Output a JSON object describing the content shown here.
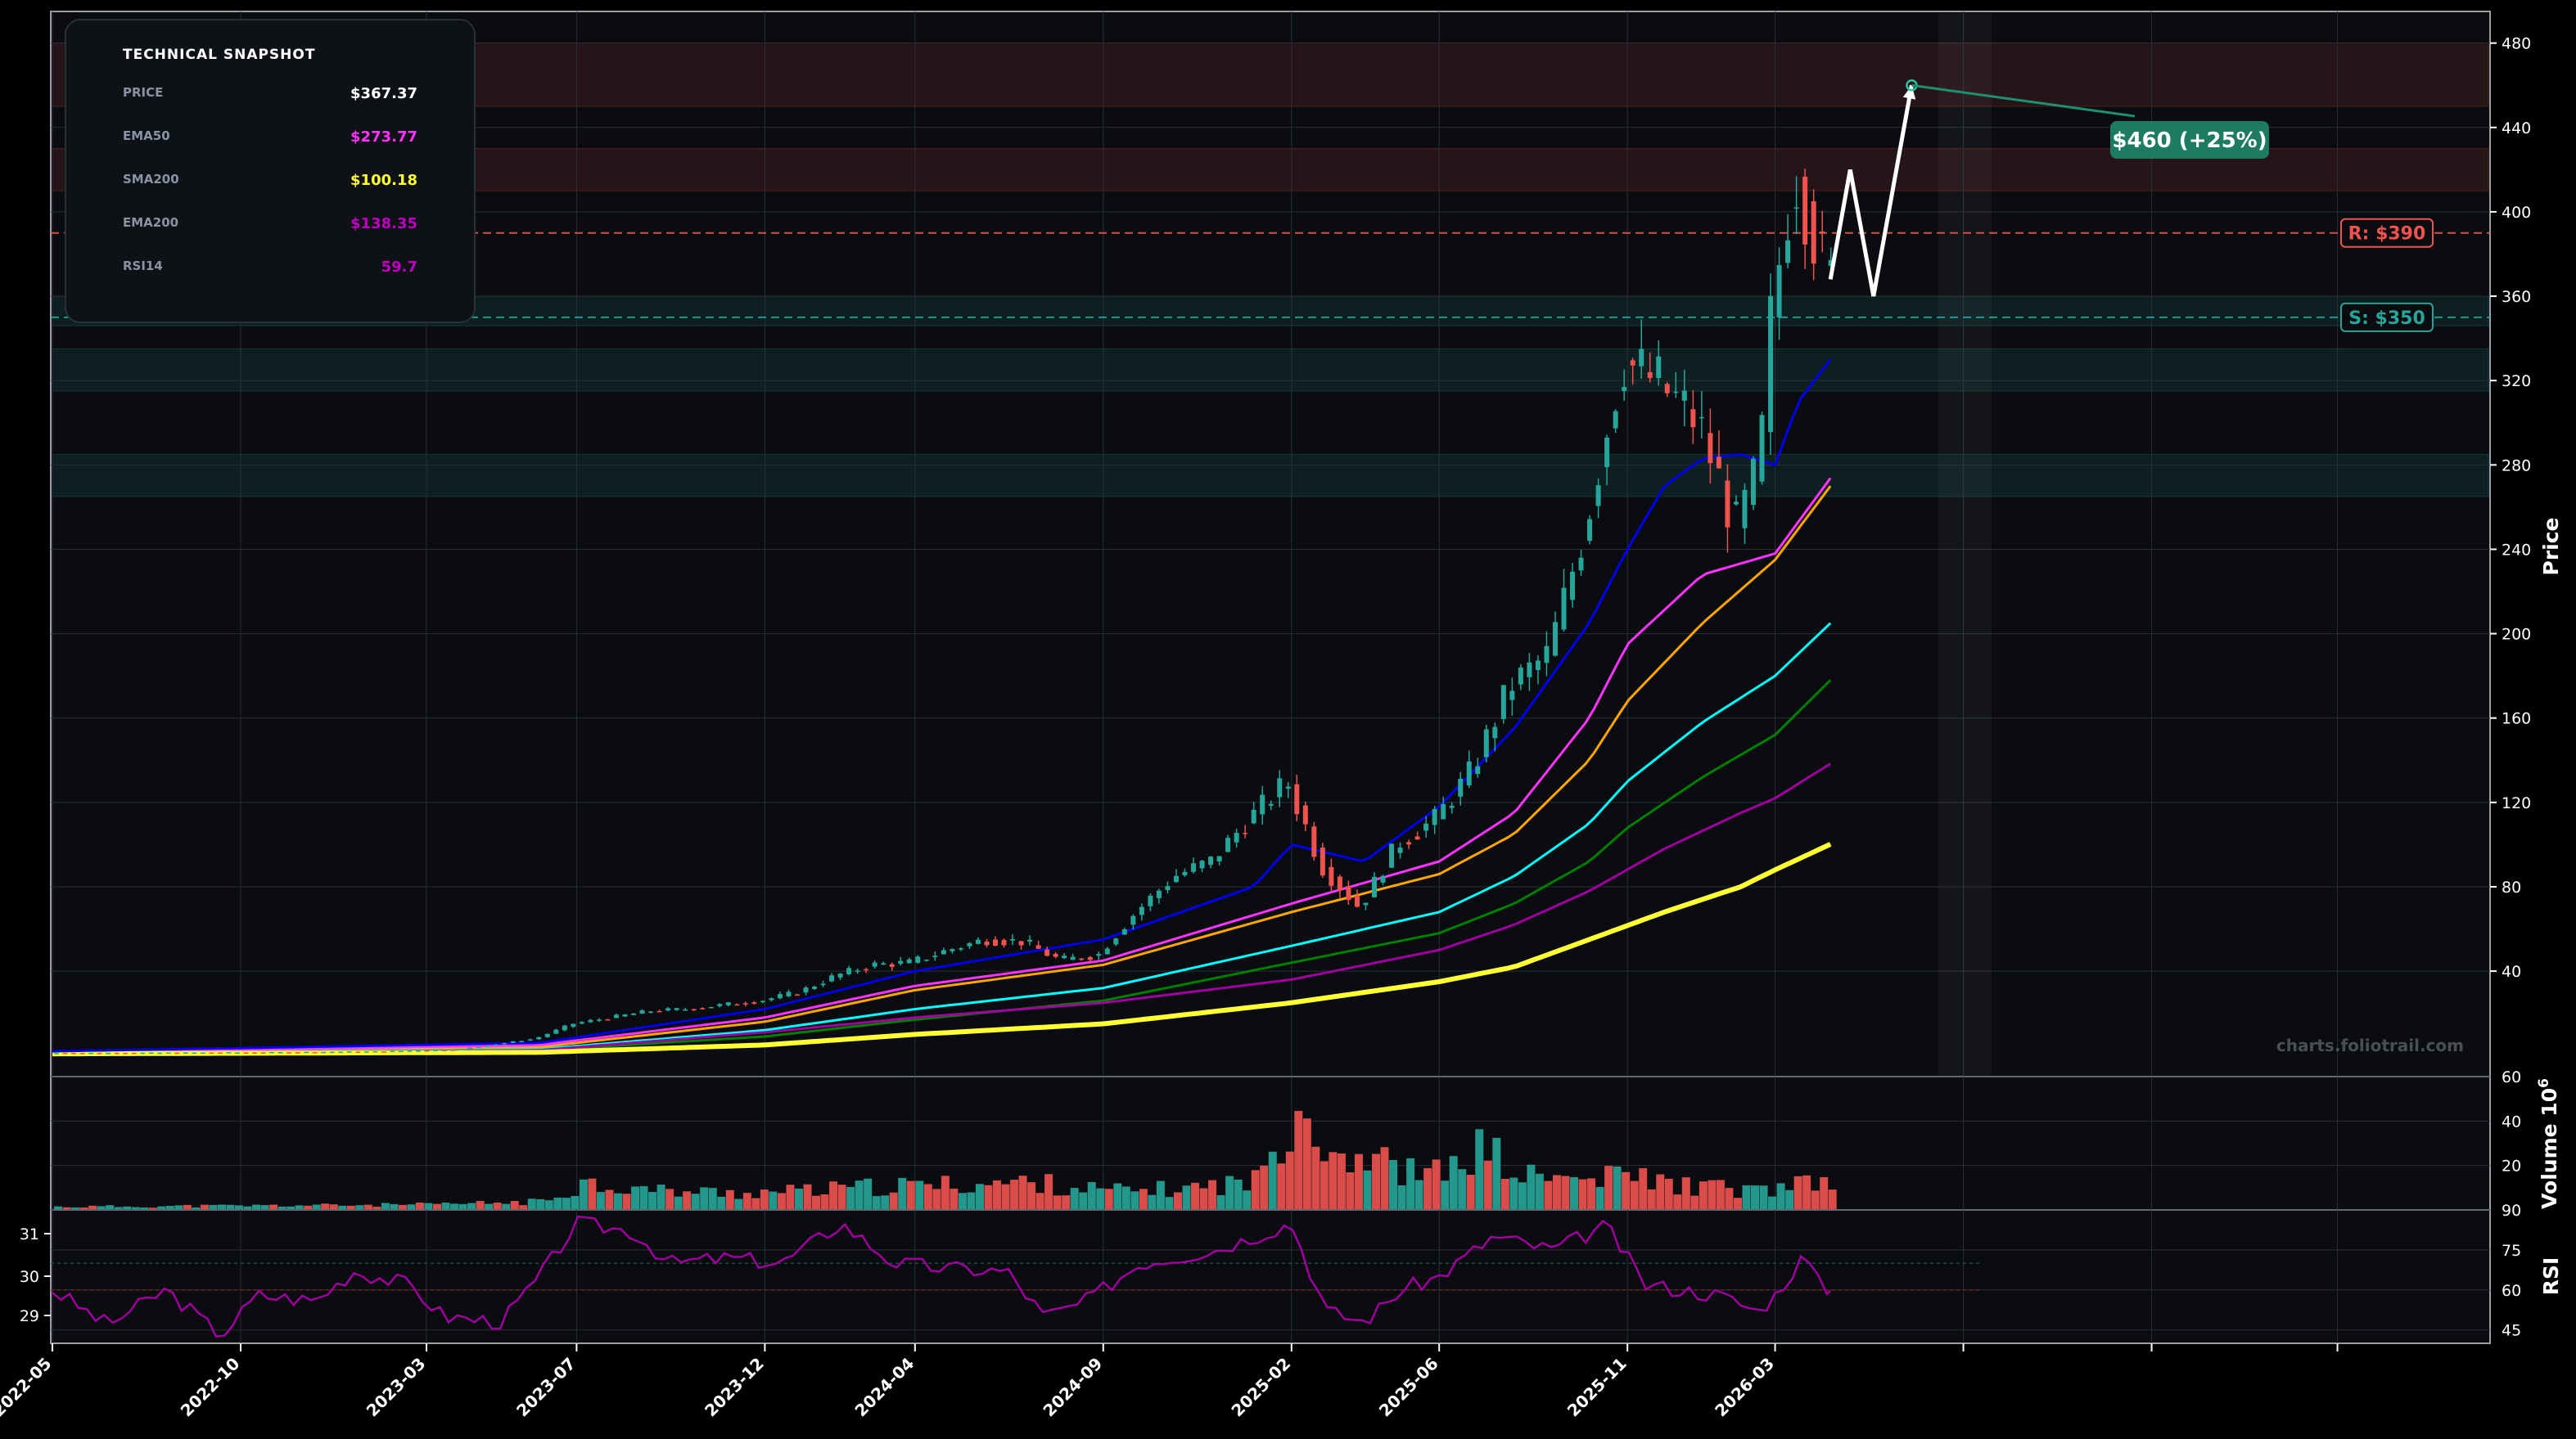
{
  "chart_data": [
    {
      "type": "candlestick",
      "panel": "price",
      "ylabel": "Price",
      "ylim": [
        -10,
        495
      ],
      "yticks": [
        40,
        80,
        120,
        160,
        200,
        240,
        280,
        320,
        360,
        400,
        440,
        480
      ],
      "x_axis": {
        "type": "date",
        "range": [
          "2022-05-01",
          "2027-06-01"
        ],
        "ticks": [
          "2022-05",
          "2022-10",
          "2023-03",
          "2023-07",
          "2023-12",
          "2024-04",
          "2024-09",
          "2025-02",
          "2025-06",
          "2025-11",
          "2026-03"
        ],
        "tick_dates": [
          "2022-05-01",
          "2022-10-01",
          "2023-03-01",
          "2023-07-01",
          "2023-12-01",
          "2024-04-01",
          "2024-09-01",
          "2025-02-01",
          "2025-06-01",
          "2025-11-01",
          "2026-03-01"
        ],
        "extra_tick_dates": [
          "2026-08-01",
          "2027-01-01",
          "2027-06-01"
        ]
      },
      "grid": true,
      "colors": {
        "up": "#26a69a",
        "down": "#ef5350",
        "background": "#0a0c10"
      },
      "price_points": [
        [
          "2022-05-01",
          1.2
        ],
        [
          "2022-08-01",
          1.3
        ],
        [
          "2022-11-01",
          1.5
        ],
        [
          "2023-02-01",
          2.0
        ],
        [
          "2023-04-01",
          3.0
        ],
        [
          "2023-06-01",
          8.0
        ],
        [
          "2023-07-01",
          15.0
        ],
        [
          "2023-08-01",
          18.0
        ],
        [
          "2023-09-01",
          21.0
        ],
        [
          "2023-10-01",
          22.0
        ],
        [
          "2023-11-01",
          24.0
        ],
        [
          "2023-12-01",
          26.0
        ],
        [
          "2024-01-01",
          30.0
        ],
        [
          "2024-02-01",
          38.0
        ],
        [
          "2024-03-01",
          43.0
        ],
        [
          "2024-04-01",
          44.0
        ],
        [
          "2024-05-01",
          50.0
        ],
        [
          "2024-06-01",
          55.0
        ],
        [
          "2024-07-01",
          54.0
        ],
        [
          "2024-08-01",
          45.0
        ],
        [
          "2024-09-01",
          48.0
        ],
        [
          "2024-10-01",
          68.0
        ],
        [
          "2024-11-01",
          85.0
        ],
        [
          "2024-12-01",
          92.0
        ],
        [
          "2025-01-01",
          112.0
        ],
        [
          "2025-02-01",
          130.0
        ],
        [
          "2025-03-01",
          90.0
        ],
        [
          "2025-04-01",
          70.0
        ],
        [
          "2025-05-01",
          100.0
        ],
        [
          "2025-06-01",
          112.0
        ],
        [
          "2025-07-01",
          135.0
        ],
        [
          "2025-08-01",
          175.0
        ],
        [
          "2025-09-01",
          190.0
        ],
        [
          "2025-10-01",
          250.0
        ],
        [
          "2025-10-20",
          300.0
        ],
        [
          "2025-11-01",
          330.0
        ],
        [
          "2025-12-01",
          318.0
        ],
        [
          "2026-01-01",
          300.0
        ],
        [
          "2026-02-01",
          250.0
        ],
        [
          "2026-02-20",
          280.0
        ],
        [
          "2026-03-01",
          350.0
        ],
        [
          "2026-03-20",
          420.0
        ],
        [
          "2026-04-01",
          400.0
        ],
        [
          "2026-04-15",
          367.37
        ]
      ],
      "series": [
        {
          "name": "EMA50",
          "color": "#ff33ff",
          "points": [
            [
              "2022-05-01",
              1.5
            ],
            [
              "2023-06-01",
              5.0
            ],
            [
              "2023-12-01",
              18.0
            ],
            [
              "2024-04-01",
              33.0
            ],
            [
              "2024-09-01",
              45.0
            ],
            [
              "2025-02-01",
              72.0
            ],
            [
              "2025-06-01",
              92.0
            ],
            [
              "2025-08-01",
              115.0
            ],
            [
              "2025-10-01",
              160.0
            ],
            [
              "2025-11-01",
              195.0
            ],
            [
              "2026-01-01",
              228.0
            ],
            [
              "2026-03-01",
              238.0
            ],
            [
              "2026-04-15",
              273.77
            ]
          ]
        },
        {
          "name": "SMA200",
          "color": "#ffff33",
          "points": [
            [
              "2022-05-01",
              0.8
            ],
            [
              "2023-06-01",
              1.5
            ],
            [
              "2023-12-01",
              5.0
            ],
            [
              "2024-04-01",
              10.0
            ],
            [
              "2024-09-01",
              15.0
            ],
            [
              "2025-02-01",
              25.0
            ],
            [
              "2025-06-01",
              35.0
            ],
            [
              "2025-08-01",
              42.0
            ],
            [
              "2025-10-01",
              55.0
            ],
            [
              "2025-12-01",
              68.0
            ],
            [
              "2026-02-01",
              80.0
            ],
            [
              "2026-03-01",
              88.0
            ],
            [
              "2026-04-15",
              100.18
            ]
          ]
        },
        {
          "name": "EMA200",
          "color": "#a000a0",
          "points": [
            [
              "2022-05-01",
              1.2
            ],
            [
              "2023-06-01",
              2.5
            ],
            [
              "2023-12-01",
              11.0
            ],
            [
              "2024-04-01",
              18.0
            ],
            [
              "2024-09-01",
              25.0
            ],
            [
              "2025-02-01",
              36.0
            ],
            [
              "2025-06-01",
              50.0
            ],
            [
              "2025-08-01",
              62.0
            ],
            [
              "2025-10-01",
              78.0
            ],
            [
              "2025-12-01",
              98.0
            ],
            [
              "2026-02-01",
              115.0
            ],
            [
              "2026-03-01",
              122.0
            ],
            [
              "2026-04-15",
              138.35
            ]
          ]
        },
        {
          "color": "#0000ee",
          "points": [
            [
              "2022-05-01",
              2.0
            ],
            [
              "2023-06-01",
              6.0
            ],
            [
              "2023-12-01",
              22.0
            ],
            [
              "2024-04-01",
              40.0
            ],
            [
              "2024-09-01",
              55.0
            ],
            [
              "2025-01-01",
              80.0
            ],
            [
              "2025-02-01",
              100.0
            ],
            [
              "2025-04-01",
              92.0
            ],
            [
              "2025-06-01",
              118.0
            ],
            [
              "2025-08-01",
              155.0
            ],
            [
              "2025-10-01",
              205.0
            ],
            [
              "2025-11-01",
              240.0
            ],
            [
              "2025-12-01",
              270.0
            ],
            [
              "2026-01-01",
              283.0
            ],
            [
              "2026-02-01",
              285.0
            ],
            [
              "2026-03-01",
              280.0
            ],
            [
              "2026-03-20",
              310.0
            ],
            [
              "2026-04-15",
              330.0
            ]
          ]
        },
        {
          "color": "#ffa500",
          "points": [
            [
              "2022-05-01",
              1.3
            ],
            [
              "2023-06-01",
              4.0
            ],
            [
              "2023-12-01",
              16.0
            ],
            [
              "2024-04-01",
              31.0
            ],
            [
              "2024-09-01",
              43.0
            ],
            [
              "2025-02-01",
              68.0
            ],
            [
              "2025-06-01",
              86.0
            ],
            [
              "2025-08-01",
              105.0
            ],
            [
              "2025-10-01",
              140.0
            ],
            [
              "2025-11-01",
              168.0
            ],
            [
              "2026-01-01",
              205.0
            ],
            [
              "2026-03-01",
              235.0
            ],
            [
              "2026-04-15",
              270.0
            ]
          ]
        },
        {
          "color": "#00ffff",
          "points": [
            [
              "2022-05-01",
              1.0
            ],
            [
              "2023-06-01",
              3.0
            ],
            [
              "2023-12-01",
              12.0
            ],
            [
              "2024-04-01",
              22.0
            ],
            [
              "2024-09-01",
              32.0
            ],
            [
              "2025-02-01",
              52.0
            ],
            [
              "2025-06-01",
              68.0
            ],
            [
              "2025-08-01",
              85.0
            ],
            [
              "2025-10-01",
              110.0
            ],
            [
              "2025-11-01",
              130.0
            ],
            [
              "2026-01-01",
              158.0
            ],
            [
              "2026-03-01",
              180.0
            ],
            [
              "2026-04-15",
              205.0
            ]
          ]
        },
        {
          "color": "#008000",
          "points": [
            [
              "2022-05-01",
              0.9
            ],
            [
              "2023-06-01",
              2.5
            ],
            [
              "2023-12-01",
              9.0
            ],
            [
              "2024-04-01",
              17.0
            ],
            [
              "2024-09-01",
              26.0
            ],
            [
              "2025-02-01",
              44.0
            ],
            [
              "2025-06-01",
              58.0
            ],
            [
              "2025-08-01",
              72.0
            ],
            [
              "2025-10-01",
              92.0
            ],
            [
              "2025-11-01",
              108.0
            ],
            [
              "2026-01-01",
              132.0
            ],
            [
              "2026-03-01",
              152.0
            ],
            [
              "2026-04-15",
              178.0
            ]
          ]
        }
      ],
      "levels": [
        {
          "type": "resistance",
          "value": 390,
          "label": "R: $390",
          "color": "#ef5350"
        },
        {
          "type": "support",
          "value": 350,
          "label": "S: $350",
          "color": "#26a69a"
        }
      ],
      "zones": [
        {
          "type": "resistance",
          "from": 450,
          "to": 480,
          "color": "#ef5350"
        },
        {
          "type": "resistance",
          "from": 410,
          "to": 430,
          "color": "#ef5350"
        },
        {
          "type": "support",
          "from": 346,
          "to": 360,
          "color": "#26a69a"
        },
        {
          "type": "support",
          "from": 315,
          "to": 335,
          "color": "#26a69a"
        },
        {
          "type": "support",
          "from": 265,
          "to": 285,
          "color": "#26a69a"
        }
      ],
      "projection": {
        "points": [
          [
            "2026-04-15",
            368
          ],
          [
            "2026-05-01",
            420
          ],
          [
            "2026-05-20",
            360
          ],
          [
            "2026-06-20",
            460
          ]
        ],
        "target": {
          "date": "2026-06-20",
          "value": 460,
          "label": "$460 (+25%)"
        }
      },
      "watermark": "charts.foliotrail.com"
    },
    {
      "type": "bar",
      "panel": "volume",
      "ylabel": "Volume  10",
      "ylabel_exponent": "6",
      "ylim": [
        0,
        60
      ],
      "yticks": [
        20,
        40,
        60
      ],
      "values_millions": [
        [
          "2022-05-01",
          1.5
        ],
        [
          "2022-10-01",
          2.0
        ],
        [
          "2023-03-01",
          2.5
        ],
        [
          "2023-06-01",
          4.0
        ],
        [
          "2023-07-01",
          13.0
        ],
        [
          "2023-09-01",
          9.0
        ],
        [
          "2023-11-01",
          8.0
        ],
        [
          "2024-01-01",
          9.0
        ],
        [
          "2024-03-01",
          11.0
        ],
        [
          "2024-05-01",
          12.0
        ],
        [
          "2024-07-01",
          13.0
        ],
        [
          "2024-09-01",
          9.0
        ],
        [
          "2024-11-01",
          10.0
        ],
        [
          "2025-01-01",
          14.0
        ],
        [
          "2025-02-01",
          54.0
        ],
        [
          "2025-03-01",
          28.0
        ],
        [
          "2025-04-01",
          25.0
        ],
        [
          "2025-05-01",
          18.0
        ],
        [
          "2025-06-01",
          17.0
        ],
        [
          "2025-07-01",
          30.0
        ],
        [
          "2025-08-01",
          16.0
        ],
        [
          "2025-10-01",
          14.0
        ],
        [
          "2025-11-01",
          17.0
        ],
        [
          "2025-12-01",
          12.0
        ],
        [
          "2026-01-01",
          11.0
        ],
        [
          "2026-02-01",
          9.0
        ],
        [
          "2026-03-01",
          10.0
        ],
        [
          "2026-04-01",
          13.0
        ],
        [
          "2026-04-15",
          9.0
        ]
      ]
    },
    {
      "type": "line",
      "panel": "rsi",
      "ylabel": "RSI",
      "ylim": [
        40,
        90
      ],
      "yticks": [
        45,
        60,
        75,
        90
      ],
      "left_ticks": [
        29,
        30,
        31
      ],
      "color": "#a000a0",
      "reference_lines": [
        60,
        70
      ],
      "points": [
        [
          "2022-05-01",
          60
        ],
        [
          "2022-06-15",
          47
        ],
        [
          "2022-08-01",
          60
        ],
        [
          "2022-09-15",
          43
        ],
        [
          "2022-10-15",
          58
        ],
        [
          "2022-12-01",
          56
        ],
        [
          "2023-01-01",
          67
        ],
        [
          "2023-02-15",
          62
        ],
        [
          "2023-03-15",
          50
        ],
        [
          "2023-05-01",
          48
        ],
        [
          "2023-06-01",
          65
        ],
        [
          "2023-07-01",
          85
        ],
        [
          "2023-08-15",
          82
        ],
        [
          "2023-09-15",
          70
        ],
        [
          "2023-11-01",
          72
        ],
        [
          "2023-12-15",
          70
        ],
        [
          "2024-02-01",
          85
        ],
        [
          "2024-03-15",
          70
        ],
        [
          "2024-05-01",
          68
        ],
        [
          "2024-06-15",
          67
        ],
        [
          "2024-07-15",
          50
        ],
        [
          "2024-08-15",
          55
        ],
        [
          "2024-10-01",
          70
        ],
        [
          "2024-12-01",
          75
        ],
        [
          "2025-02-01",
          85
        ],
        [
          "2025-03-01",
          52
        ],
        [
          "2025-04-01",
          48
        ],
        [
          "2025-05-01",
          60
        ],
        [
          "2025-06-01",
          65
        ],
        [
          "2025-07-15",
          80
        ],
        [
          "2025-09-01",
          75
        ],
        [
          "2025-10-15",
          84
        ],
        [
          "2025-11-15",
          62
        ],
        [
          "2025-12-15",
          60
        ],
        [
          "2026-01-15",
          58
        ],
        [
          "2026-02-15",
          52
        ],
        [
          "2026-03-01",
          58
        ],
        [
          "2026-03-25",
          73
        ],
        [
          "2026-04-05",
          63
        ],
        [
          "2026-04-15",
          59.7
        ]
      ]
    }
  ],
  "snapshot": {
    "title": "TECHNICAL SNAPSHOT",
    "rows": [
      {
        "key": "PRICE",
        "value": "$367.37",
        "color": "#ffffff"
      },
      {
        "key": "EMA50",
        "value": "$273.77",
        "color": "#ff33ff"
      },
      {
        "key": "SMA200",
        "value": "$100.18",
        "color": "#ffff33"
      },
      {
        "key": "EMA200",
        "value": "$138.35",
        "color": "#c000c0"
      },
      {
        "key": "RSI14",
        "value": "59.7",
        "color": "#c000c0"
      }
    ]
  }
}
